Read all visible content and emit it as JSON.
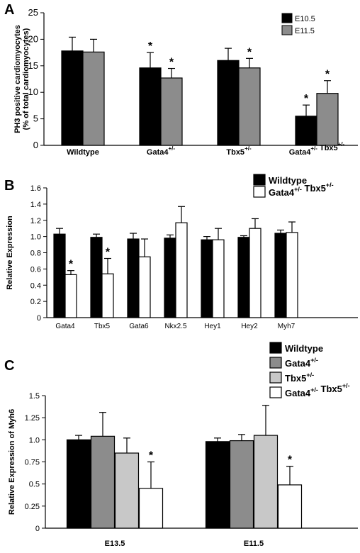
{
  "chart_data": [
    {
      "panel": "A",
      "type": "bar",
      "ylabel": "PH3 positive cardiomyocytes (% of total cardiomyocytes)",
      "ylim": [
        0,
        25
      ],
      "yticks": [
        0,
        5,
        10,
        15,
        20,
        25
      ],
      "categories": [
        {
          "main": "Wildtype",
          "sup": ""
        },
        {
          "main": "Gata4",
          "sup": "+/-"
        },
        {
          "main": "Tbx5",
          "sup": "+/-"
        },
        {
          "main": "Gata4",
          "sup": "+/-",
          "main2": "Tbx5",
          "sup2": "+/-"
        }
      ],
      "series": [
        {
          "name": "E10.5",
          "color": "#000000",
          "values": [
            17.8,
            14.6,
            16.0,
            5.5
          ],
          "errors": [
            2.6,
            2.9,
            2.3,
            2.1
          ],
          "significant": [
            false,
            true,
            false,
            true
          ]
        },
        {
          "name": "E11.5",
          "color": "#8c8c8c",
          "values": [
            17.6,
            12.7,
            14.6,
            9.8
          ],
          "errors": [
            2.4,
            1.8,
            1.8,
            2.4
          ],
          "significant": [
            false,
            true,
            true,
            true
          ]
        }
      ],
      "legend_position": "top-right"
    },
    {
      "panel": "B",
      "type": "bar",
      "ylabel": "Relative Expression",
      "ylim": [
        0,
        1.6
      ],
      "yticks": [
        0,
        0.2,
        0.4,
        0.6,
        0.8,
        1.0,
        1.2,
        1.4,
        1.6
      ],
      "ytick_labels": [
        "0",
        "0.2",
        "0.4",
        "0.6",
        "0.8",
        "1.0",
        "1.2",
        "1.4",
        "1.6"
      ],
      "categories": [
        "Gata4",
        "Tbx5",
        "Gata6",
        "Nkx2.5",
        "Hey1",
        "Hey2",
        "Myh7"
      ],
      "series": [
        {
          "name": "Wildtype",
          "color": "#000000",
          "values": [
            1.03,
            0.99,
            0.97,
            0.98,
            0.96,
            0.99,
            1.04
          ],
          "errors": [
            0.07,
            0.04,
            0.07,
            0.04,
            0.04,
            0.02,
            0.04
          ],
          "significant": [
            false,
            false,
            false,
            false,
            false,
            false,
            false
          ]
        },
        {
          "name": "Gata4 +/- Tbx5 +/-",
          "color": "#ffffff",
          "values": [
            0.53,
            0.54,
            0.75,
            1.17,
            0.96,
            1.1,
            1.05
          ],
          "errors": [
            0.05,
            0.19,
            0.22,
            0.2,
            0.14,
            0.12,
            0.13
          ],
          "significant": [
            true,
            true,
            false,
            false,
            false,
            false,
            false
          ]
        }
      ],
      "legend": [
        {
          "main": "Wildtype",
          "sup": "",
          "main2": "",
          "sup2": "",
          "color": "#000000"
        },
        {
          "main": "Gata4",
          "sup": "+/-",
          "main2": "Tbx5",
          "sup2": "+/-",
          "color": "#ffffff"
        }
      ],
      "legend_position": "top-right"
    },
    {
      "panel": "C",
      "type": "bar",
      "ylabel": "Relative Expression of Myh6",
      "ylim": [
        0,
        1.5
      ],
      "yticks": [
        0,
        0.25,
        0.5,
        0.75,
        1.0,
        1.25,
        1.5
      ],
      "ytick_labels": [
        "0",
        "0.25",
        "0.5",
        "0.75",
        "1.0",
        "1.25",
        "1.5"
      ],
      "categories": [
        "E13.5",
        "E11.5"
      ],
      "series": [
        {
          "name": "Wildtype",
          "color": "#000000",
          "values": [
            1.0,
            0.98
          ],
          "errors": [
            0.05,
            0.04
          ],
          "significant": [
            false,
            false
          ]
        },
        {
          "name": "Gata4 +/-",
          "color": "#8c8c8c",
          "values": [
            1.04,
            0.99
          ],
          "errors": [
            0.27,
            0.07
          ],
          "significant": [
            false,
            false
          ]
        },
        {
          "name": "Tbx5 +/-",
          "color": "#c8c8c8",
          "values": [
            0.85,
            1.05
          ],
          "errors": [
            0.17,
            0.34
          ],
          "significant": [
            false,
            false
          ]
        },
        {
          "name": "Gata4 +/- Tbx5 +/-",
          "color": "#ffffff",
          "values": [
            0.45,
            0.49
          ],
          "errors": [
            0.3,
            0.21
          ],
          "significant": [
            true,
            true
          ]
        }
      ],
      "legend": [
        {
          "main": "Wildtype",
          "sup": "",
          "main2": "",
          "sup2": "",
          "color": "#000000"
        },
        {
          "main": "Gata4",
          "sup": "+/-",
          "main2": "",
          "sup2": "",
          "color": "#8c8c8c"
        },
        {
          "main": "Tbx5",
          "sup": "+/-",
          "main2": "",
          "sup2": "",
          "color": "#c8c8c8"
        },
        {
          "main": "Gata4",
          "sup": "+/-",
          "main2": "Tbx5",
          "sup2": "+/-",
          "color": "#ffffff"
        }
      ],
      "legend_position": "top-right"
    }
  ],
  "panel_labels": [
    "A",
    "B",
    "C"
  ],
  "significance_marker": "*"
}
